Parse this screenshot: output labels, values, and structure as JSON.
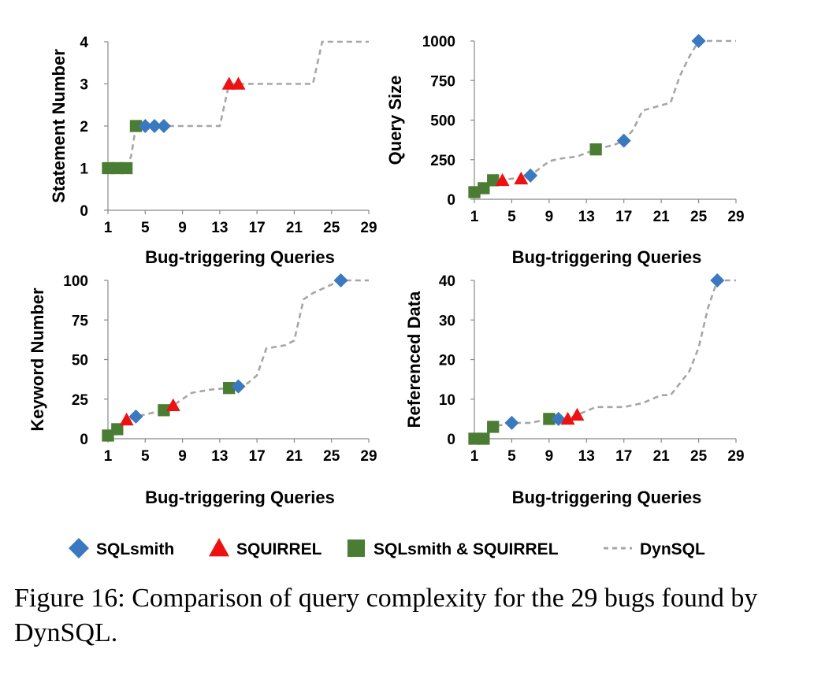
{
  "caption": "Figure 16: Comparison of query complexity for the 29 bugs found by DynSQL.",
  "colors": {
    "sqlsmith": "#3a78c0",
    "squirrel": "#ee1111",
    "both": "#4a7d33",
    "dynsql": "#a6a6a6"
  },
  "legend": [
    {
      "key": "sqlsmith",
      "label": "SQLsmith",
      "marker": "diamond"
    },
    {
      "key": "squirrel",
      "label": "SQUIRREL",
      "marker": "triangle"
    },
    {
      "key": "both",
      "label": "SQLsmith & SQUIRREL",
      "marker": "square"
    },
    {
      "key": "dynsql",
      "label": "DynSQL",
      "marker": "dashed-line"
    }
  ],
  "chart_data": [
    {
      "type": "scatter",
      "ylabel": "Statement Number",
      "xlabel": "Bug-triggering Queries",
      "xticks": [
        1,
        5,
        9,
        13,
        17,
        21,
        25,
        29
      ],
      "yticks": [
        0,
        1,
        2,
        3,
        4
      ],
      "xlim": [
        1,
        29
      ],
      "ylim": [
        0,
        4
      ],
      "dynsql": [
        [
          1,
          1
        ],
        [
          2,
          1
        ],
        [
          3,
          1
        ],
        [
          3.5,
          1.3
        ],
        [
          4,
          2
        ],
        [
          5,
          2
        ],
        [
          13,
          2
        ],
        [
          14,
          3
        ],
        [
          15,
          3
        ],
        [
          23,
          3
        ],
        [
          24,
          4
        ],
        [
          29,
          4
        ]
      ],
      "series": [
        {
          "key": "both",
          "points": [
            [
              1,
              1
            ],
            [
              2,
              1
            ],
            [
              3,
              1
            ],
            [
              4,
              2
            ]
          ]
        },
        {
          "key": "sqlsmith",
          "points": [
            [
              5,
              2
            ],
            [
              6,
              2
            ],
            [
              7,
              2
            ]
          ]
        },
        {
          "key": "squirrel",
          "points": [
            [
              14,
              3
            ],
            [
              15,
              3
            ]
          ]
        }
      ]
    },
    {
      "type": "scatter",
      "ylabel": "Query Size",
      "xlabel": "Bug-triggering Queries",
      "xticks": [
        1,
        5,
        9,
        13,
        17,
        21,
        25,
        29
      ],
      "yticks": [
        0,
        250,
        500,
        750,
        1000
      ],
      "xlim": [
        1,
        29
      ],
      "ylim": [
        0,
        1000
      ],
      "dynsql": [
        [
          1,
          45
        ],
        [
          2,
          70
        ],
        [
          3,
          120
        ],
        [
          5,
          130
        ],
        [
          7,
          150
        ],
        [
          9,
          240
        ],
        [
          10,
          255
        ],
        [
          12,
          270
        ],
        [
          14,
          315
        ],
        [
          16,
          345
        ],
        [
          17,
          370
        ],
        [
          18,
          440
        ],
        [
          19,
          560
        ],
        [
          22,
          610
        ],
        [
          23,
          780
        ],
        [
          24,
          900
        ],
        [
          25,
          1000
        ],
        [
          29,
          1000
        ]
      ],
      "series": [
        {
          "key": "both",
          "points": [
            [
              1,
              45
            ],
            [
              2,
              70
            ],
            [
              3,
              120
            ],
            [
              14,
              315
            ]
          ]
        },
        {
          "key": "squirrel",
          "points": [
            [
              4,
              120
            ],
            [
              6,
              130
            ]
          ]
        },
        {
          "key": "sqlsmith",
          "points": [
            [
              7,
              150
            ],
            [
              17,
              370
            ],
            [
              25,
              1000
            ]
          ]
        }
      ]
    },
    {
      "type": "scatter",
      "ylabel": "Keyword Number",
      "xlabel": "Bug-triggering Queries",
      "xticks": [
        1,
        5,
        9,
        13,
        17,
        21,
        25,
        29
      ],
      "yticks": [
        0,
        25,
        50,
        75,
        100
      ],
      "xlim": [
        1,
        29
      ],
      "ylim": [
        0,
        100
      ],
      "dynsql": [
        [
          1,
          2
        ],
        [
          2,
          6
        ],
        [
          3,
          12
        ],
        [
          4,
          14
        ],
        [
          7,
          18
        ],
        [
          8,
          21
        ],
        [
          10,
          29
        ],
        [
          12,
          31
        ],
        [
          14,
          32
        ],
        [
          15,
          33
        ],
        [
          16,
          35
        ],
        [
          17,
          40
        ],
        [
          18,
          57
        ],
        [
          20,
          59
        ],
        [
          21,
          62
        ],
        [
          22,
          88
        ],
        [
          23,
          92
        ],
        [
          26,
          100
        ],
        [
          29,
          100
        ]
      ],
      "series": [
        {
          "key": "both",
          "points": [
            [
              1,
              2
            ],
            [
              2,
              6
            ],
            [
              7,
              18
            ],
            [
              14,
              32
            ]
          ]
        },
        {
          "key": "squirrel",
          "points": [
            [
              3,
              12
            ],
            [
              8,
              21
            ]
          ]
        },
        {
          "key": "sqlsmith",
          "points": [
            [
              4,
              14
            ],
            [
              15,
              33
            ],
            [
              26,
              100
            ]
          ]
        }
      ]
    },
    {
      "type": "scatter",
      "ylabel": "Referenced Data",
      "xlabel": "Bug-triggering Queries",
      "xticks": [
        1,
        5,
        9,
        13,
        17,
        21,
        25,
        29
      ],
      "yticks": [
        0,
        10,
        20,
        30,
        40
      ],
      "xlim": [
        1,
        29
      ],
      "ylim": [
        0,
        40
      ],
      "dynsql": [
        [
          1,
          0
        ],
        [
          2,
          0
        ],
        [
          3,
          3
        ],
        [
          5,
          4
        ],
        [
          7,
          4
        ],
        [
          9,
          5
        ],
        [
          11,
          5
        ],
        [
          12,
          6
        ],
        [
          13,
          7
        ],
        [
          14,
          8
        ],
        [
          17,
          8
        ],
        [
          19,
          9
        ],
        [
          21,
          11
        ],
        [
          22,
          11
        ],
        [
          24,
          17
        ],
        [
          25,
          23
        ],
        [
          26,
          33
        ],
        [
          27,
          40
        ],
        [
          29,
          40
        ]
      ],
      "series": [
        {
          "key": "both",
          "points": [
            [
              1,
              0
            ],
            [
              2,
              0
            ],
            [
              3,
              3
            ],
            [
              9,
              5
            ]
          ]
        },
        {
          "key": "sqlsmith",
          "points": [
            [
              5,
              4
            ],
            [
              10,
              5
            ],
            [
              27,
              40
            ]
          ]
        },
        {
          "key": "squirrel",
          "points": [
            [
              11,
              5
            ],
            [
              12,
              6
            ]
          ]
        }
      ]
    }
  ]
}
